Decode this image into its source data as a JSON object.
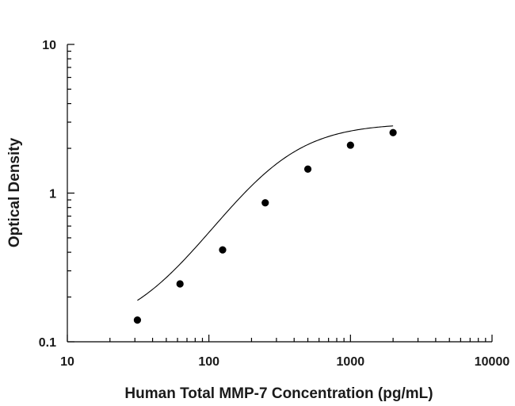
{
  "chart_data": {
    "type": "scatter",
    "title": "",
    "xlabel": "Human Total MMP-7 Concentration (pg/mL)",
    "ylabel": "Optical Density",
    "x_scale": "log",
    "y_scale": "log",
    "xlim": [
      10,
      10000
    ],
    "ylim": [
      0.1,
      10
    ],
    "x_ticks": [
      "10",
      "100",
      "1000",
      "10000"
    ],
    "y_ticks": [
      "10",
      "1",
      "0.1"
    ],
    "grid": false,
    "legend": "none",
    "series": [
      {
        "x": [
          31.25,
          62.5,
          125,
          250,
          500,
          1000,
          2000
        ],
        "y": [
          0.14,
          0.245,
          0.415,
          0.86,
          1.45,
          2.1,
          2.55
        ],
        "marker": "filled-circle",
        "fit_line": "four-parameter logistic",
        "color": "#000000"
      }
    ]
  }
}
